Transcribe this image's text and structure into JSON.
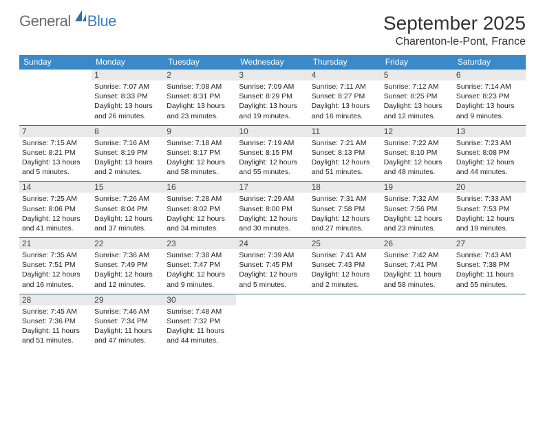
{
  "logo": {
    "word1": "General",
    "word2": "Blue"
  },
  "title": "September 2025",
  "location": "Charenton-le-Pont, France",
  "colors": {
    "header_bg": "#3a89c9",
    "header_fg": "#ffffff",
    "week_border": "#3a6a8a",
    "daynum_bg": "#e9e9e9",
    "daynum_fg": "#444444",
    "text": "#222222",
    "title_fg": "#333333",
    "logo_grey": "#6a6a6a",
    "logo_blue": "#3a7cc4"
  },
  "dayheads": [
    "Sunday",
    "Monday",
    "Tuesday",
    "Wednesday",
    "Thursday",
    "Friday",
    "Saturday"
  ],
  "weeks": [
    [
      {
        "empty": true
      },
      {
        "day": "1",
        "sunrise": "Sunrise: 7:07 AM",
        "sunset": "Sunset: 8:33 PM",
        "daylight": "Daylight: 13 hours and 26 minutes."
      },
      {
        "day": "2",
        "sunrise": "Sunrise: 7:08 AM",
        "sunset": "Sunset: 8:31 PM",
        "daylight": "Daylight: 13 hours and 23 minutes."
      },
      {
        "day": "3",
        "sunrise": "Sunrise: 7:09 AM",
        "sunset": "Sunset: 8:29 PM",
        "daylight": "Daylight: 13 hours and 19 minutes."
      },
      {
        "day": "4",
        "sunrise": "Sunrise: 7:11 AM",
        "sunset": "Sunset: 8:27 PM",
        "daylight": "Daylight: 13 hours and 16 minutes."
      },
      {
        "day": "5",
        "sunrise": "Sunrise: 7:12 AM",
        "sunset": "Sunset: 8:25 PM",
        "daylight": "Daylight: 13 hours and 12 minutes."
      },
      {
        "day": "6",
        "sunrise": "Sunrise: 7:14 AM",
        "sunset": "Sunset: 8:23 PM",
        "daylight": "Daylight: 13 hours and 9 minutes."
      }
    ],
    [
      {
        "day": "7",
        "sunrise": "Sunrise: 7:15 AM",
        "sunset": "Sunset: 8:21 PM",
        "daylight": "Daylight: 13 hours and 5 minutes."
      },
      {
        "day": "8",
        "sunrise": "Sunrise: 7:16 AM",
        "sunset": "Sunset: 8:19 PM",
        "daylight": "Daylight: 13 hours and 2 minutes."
      },
      {
        "day": "9",
        "sunrise": "Sunrise: 7:18 AM",
        "sunset": "Sunset: 8:17 PM",
        "daylight": "Daylight: 12 hours and 58 minutes."
      },
      {
        "day": "10",
        "sunrise": "Sunrise: 7:19 AM",
        "sunset": "Sunset: 8:15 PM",
        "daylight": "Daylight: 12 hours and 55 minutes."
      },
      {
        "day": "11",
        "sunrise": "Sunrise: 7:21 AM",
        "sunset": "Sunset: 8:13 PM",
        "daylight": "Daylight: 12 hours and 51 minutes."
      },
      {
        "day": "12",
        "sunrise": "Sunrise: 7:22 AM",
        "sunset": "Sunset: 8:10 PM",
        "daylight": "Daylight: 12 hours and 48 minutes."
      },
      {
        "day": "13",
        "sunrise": "Sunrise: 7:23 AM",
        "sunset": "Sunset: 8:08 PM",
        "daylight": "Daylight: 12 hours and 44 minutes."
      }
    ],
    [
      {
        "day": "14",
        "sunrise": "Sunrise: 7:25 AM",
        "sunset": "Sunset: 8:06 PM",
        "daylight": "Daylight: 12 hours and 41 minutes."
      },
      {
        "day": "15",
        "sunrise": "Sunrise: 7:26 AM",
        "sunset": "Sunset: 8:04 PM",
        "daylight": "Daylight: 12 hours and 37 minutes."
      },
      {
        "day": "16",
        "sunrise": "Sunrise: 7:28 AM",
        "sunset": "Sunset: 8:02 PM",
        "daylight": "Daylight: 12 hours and 34 minutes."
      },
      {
        "day": "17",
        "sunrise": "Sunrise: 7:29 AM",
        "sunset": "Sunset: 8:00 PM",
        "daylight": "Daylight: 12 hours and 30 minutes."
      },
      {
        "day": "18",
        "sunrise": "Sunrise: 7:31 AM",
        "sunset": "Sunset: 7:58 PM",
        "daylight": "Daylight: 12 hours and 27 minutes."
      },
      {
        "day": "19",
        "sunrise": "Sunrise: 7:32 AM",
        "sunset": "Sunset: 7:56 PM",
        "daylight": "Daylight: 12 hours and 23 minutes."
      },
      {
        "day": "20",
        "sunrise": "Sunrise: 7:33 AM",
        "sunset": "Sunset: 7:53 PM",
        "daylight": "Daylight: 12 hours and 19 minutes."
      }
    ],
    [
      {
        "day": "21",
        "sunrise": "Sunrise: 7:35 AM",
        "sunset": "Sunset: 7:51 PM",
        "daylight": "Daylight: 12 hours and 16 minutes."
      },
      {
        "day": "22",
        "sunrise": "Sunrise: 7:36 AM",
        "sunset": "Sunset: 7:49 PM",
        "daylight": "Daylight: 12 hours and 12 minutes."
      },
      {
        "day": "23",
        "sunrise": "Sunrise: 7:38 AM",
        "sunset": "Sunset: 7:47 PM",
        "daylight": "Daylight: 12 hours and 9 minutes."
      },
      {
        "day": "24",
        "sunrise": "Sunrise: 7:39 AM",
        "sunset": "Sunset: 7:45 PM",
        "daylight": "Daylight: 12 hours and 5 minutes."
      },
      {
        "day": "25",
        "sunrise": "Sunrise: 7:41 AM",
        "sunset": "Sunset: 7:43 PM",
        "daylight": "Daylight: 12 hours and 2 minutes."
      },
      {
        "day": "26",
        "sunrise": "Sunrise: 7:42 AM",
        "sunset": "Sunset: 7:41 PM",
        "daylight": "Daylight: 11 hours and 58 minutes."
      },
      {
        "day": "27",
        "sunrise": "Sunrise: 7:43 AM",
        "sunset": "Sunset: 7:38 PM",
        "daylight": "Daylight: 11 hours and 55 minutes."
      }
    ],
    [
      {
        "day": "28",
        "sunrise": "Sunrise: 7:45 AM",
        "sunset": "Sunset: 7:36 PM",
        "daylight": "Daylight: 11 hours and 51 minutes."
      },
      {
        "day": "29",
        "sunrise": "Sunrise: 7:46 AM",
        "sunset": "Sunset: 7:34 PM",
        "daylight": "Daylight: 11 hours and 47 minutes."
      },
      {
        "day": "30",
        "sunrise": "Sunrise: 7:48 AM",
        "sunset": "Sunset: 7:32 PM",
        "daylight": "Daylight: 11 hours and 44 minutes."
      },
      {
        "empty": true
      },
      {
        "empty": true
      },
      {
        "empty": true
      },
      {
        "empty": true
      }
    ]
  ]
}
